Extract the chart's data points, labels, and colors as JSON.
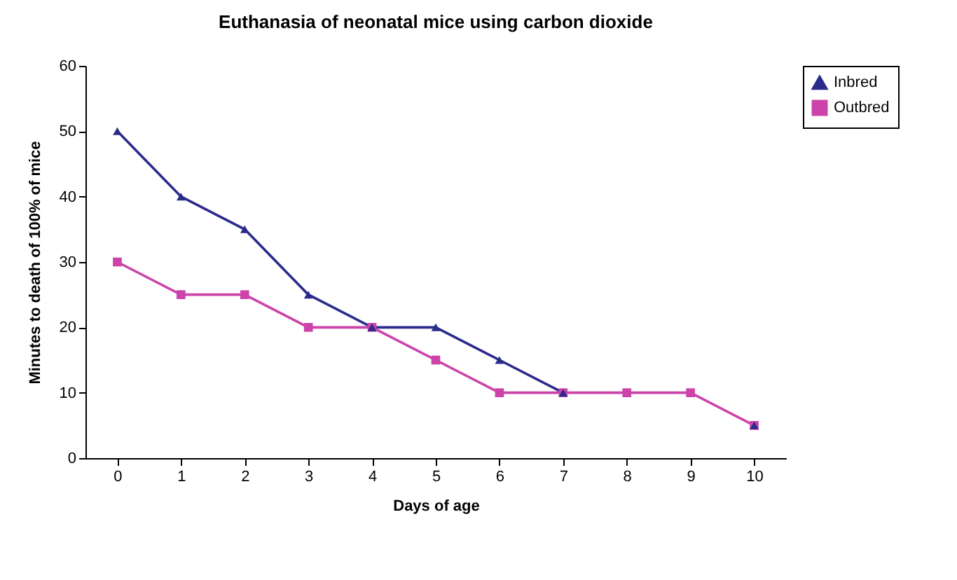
{
  "chart_data": {
    "type": "line",
    "title": "Euthanasia of neonatal mice using carbon dioxide",
    "xlabel": "Days of age",
    "ylabel": "Minutes to death of 100% of mice",
    "categories": [
      "0",
      "1",
      "2",
      "3",
      "4",
      "5",
      "6",
      "7",
      "8",
      "9",
      "10"
    ],
    "series": [
      {
        "name": "Inbred",
        "color": "#2b2b8c",
        "marker": "triangle",
        "values": [
          50,
          40,
          35,
          25,
          20,
          20,
          15,
          10,
          null,
          null,
          5
        ]
      },
      {
        "name": "Outbred",
        "color": "#cc44aa",
        "marker": "square",
        "values": [
          30,
          25,
          25,
          20,
          20,
          15,
          10,
          10,
          10,
          10,
          5
        ]
      }
    ],
    "ylim": [
      0,
      60
    ],
    "yticks": [
      0,
      10,
      20,
      30,
      40,
      50,
      60
    ],
    "grid": false,
    "legend": "right",
    "line_style": "solid"
  }
}
